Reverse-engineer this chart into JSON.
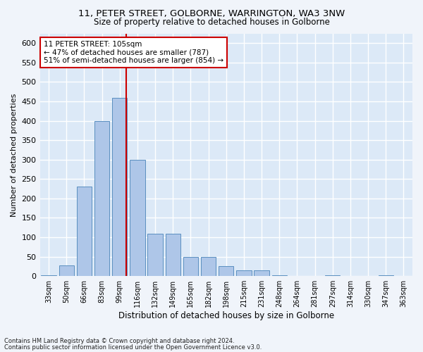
{
  "title_line1": "11, PETER STREET, GOLBORNE, WARRINGTON, WA3 3NW",
  "title_line2": "Size of property relative to detached houses in Golborne",
  "xlabel": "Distribution of detached houses by size in Golborne",
  "ylabel": "Number of detached properties",
  "footnote1": "Contains HM Land Registry data © Crown copyright and database right 2024.",
  "footnote2": "Contains public sector information licensed under the Open Government Licence v3.0.",
  "bar_labels": [
    "33sqm",
    "50sqm",
    "66sqm",
    "83sqm",
    "99sqm",
    "116sqm",
    "132sqm",
    "149sqm",
    "165sqm",
    "182sqm",
    "198sqm",
    "215sqm",
    "231sqm",
    "248sqm",
    "264sqm",
    "281sqm",
    "297sqm",
    "314sqm",
    "330sqm",
    "347sqm",
    "363sqm"
  ],
  "bar_values": [
    2,
    28,
    230,
    400,
    460,
    300,
    110,
    110,
    50,
    50,
    25,
    15,
    15,
    2,
    0,
    0,
    2,
    0,
    0,
    2,
    0
  ],
  "bar_color": "#aec6e8",
  "bar_edge_color": "#5a8fc0",
  "fig_bg_color": "#f0f4fa",
  "plot_bg_color": "#dce9f7",
  "grid_color": "#ffffff",
  "annotation_text": "11 PETER STREET: 105sqm\n← 47% of detached houses are smaller (787)\n51% of semi-detached houses are larger (854) →",
  "annotation_box_color": "#ffffff",
  "annotation_box_edge": "#cc0000",
  "vline_color": "#cc0000",
  "ylim": [
    0,
    625
  ],
  "yticks": [
    0,
    50,
    100,
    150,
    200,
    250,
    300,
    350,
    400,
    450,
    500,
    550,
    600
  ]
}
